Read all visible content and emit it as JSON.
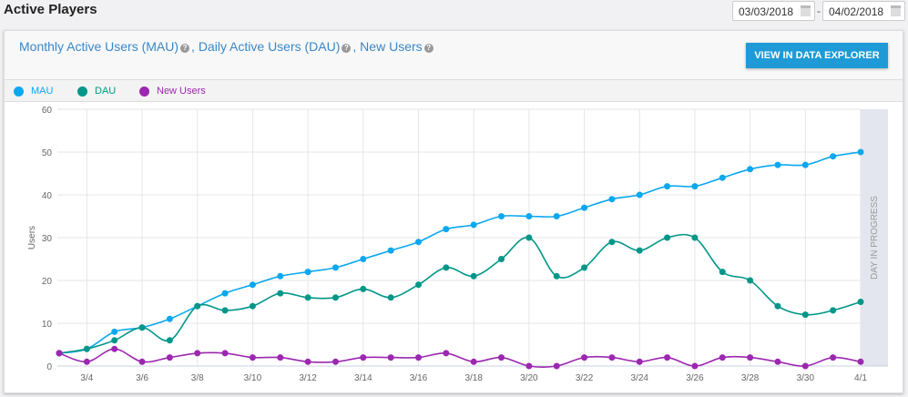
{
  "header": {
    "title": "Active Players",
    "start_date": "03/03/2018",
    "end_date": "04/02/2018",
    "separator": "-"
  },
  "card": {
    "title_parts": [
      "Monthly Active Users (MAU)",
      ", Daily Active Users (DAU)",
      ", New Users"
    ],
    "help_icon": "question-circle-icon",
    "button": "VIEW IN DATA EXPLORER"
  },
  "legend": [
    {
      "label": "MAU",
      "color": "#0ba8f0"
    },
    {
      "label": "DAU",
      "color": "#009688"
    },
    {
      "label": "New Users",
      "color": "#9c27b0"
    }
  ],
  "chart_data": {
    "type": "line",
    "ylabel": "Users",
    "ylim": [
      0,
      60
    ],
    "yticks": [
      0,
      10,
      20,
      30,
      40,
      50,
      60
    ],
    "x": [
      "3/3",
      "3/4",
      "3/5",
      "3/6",
      "3/7",
      "3/8",
      "3/9",
      "3/10",
      "3/11",
      "3/12",
      "3/13",
      "3/14",
      "3/15",
      "3/16",
      "3/17",
      "3/18",
      "3/19",
      "3/20",
      "3/21",
      "3/22",
      "3/23",
      "3/24",
      "3/25",
      "3/26",
      "3/27",
      "3/28",
      "3/29",
      "3/30",
      "3/31",
      "4/1"
    ],
    "xtick_labels": [
      "3/4",
      "3/6",
      "3/8",
      "3/10",
      "3/12",
      "3/14",
      "3/16",
      "3/18",
      "3/20",
      "3/22",
      "3/24",
      "3/26",
      "3/28",
      "3/30",
      "4/1"
    ],
    "grid": true,
    "annotation": "DAY IN PROGRESS",
    "series": [
      {
        "name": "MAU",
        "color": "#0ba8f0",
        "values": [
          3,
          4,
          8,
          9,
          11,
          14,
          17,
          19,
          21,
          22,
          23,
          25,
          27,
          29,
          32,
          33,
          35,
          35,
          35,
          37,
          39,
          40,
          42,
          42,
          44,
          46,
          47,
          47,
          49,
          50
        ]
      },
      {
        "name": "DAU",
        "color": "#009688",
        "values": [
          3,
          4,
          6,
          9,
          6,
          14,
          13,
          14,
          17,
          16,
          16,
          18,
          16,
          19,
          23,
          21,
          25,
          30,
          21,
          23,
          29,
          27,
          30,
          30,
          22,
          20,
          14,
          12,
          13,
          15
        ]
      },
      {
        "name": "New Users",
        "color": "#9c27b0",
        "values": [
          3,
          1,
          4,
          1,
          2,
          3,
          3,
          2,
          2,
          1,
          1,
          2,
          2,
          2,
          3,
          1,
          2,
          0,
          0,
          2,
          2,
          1,
          2,
          0,
          2,
          2,
          1,
          0,
          2,
          1
        ]
      }
    ]
  }
}
